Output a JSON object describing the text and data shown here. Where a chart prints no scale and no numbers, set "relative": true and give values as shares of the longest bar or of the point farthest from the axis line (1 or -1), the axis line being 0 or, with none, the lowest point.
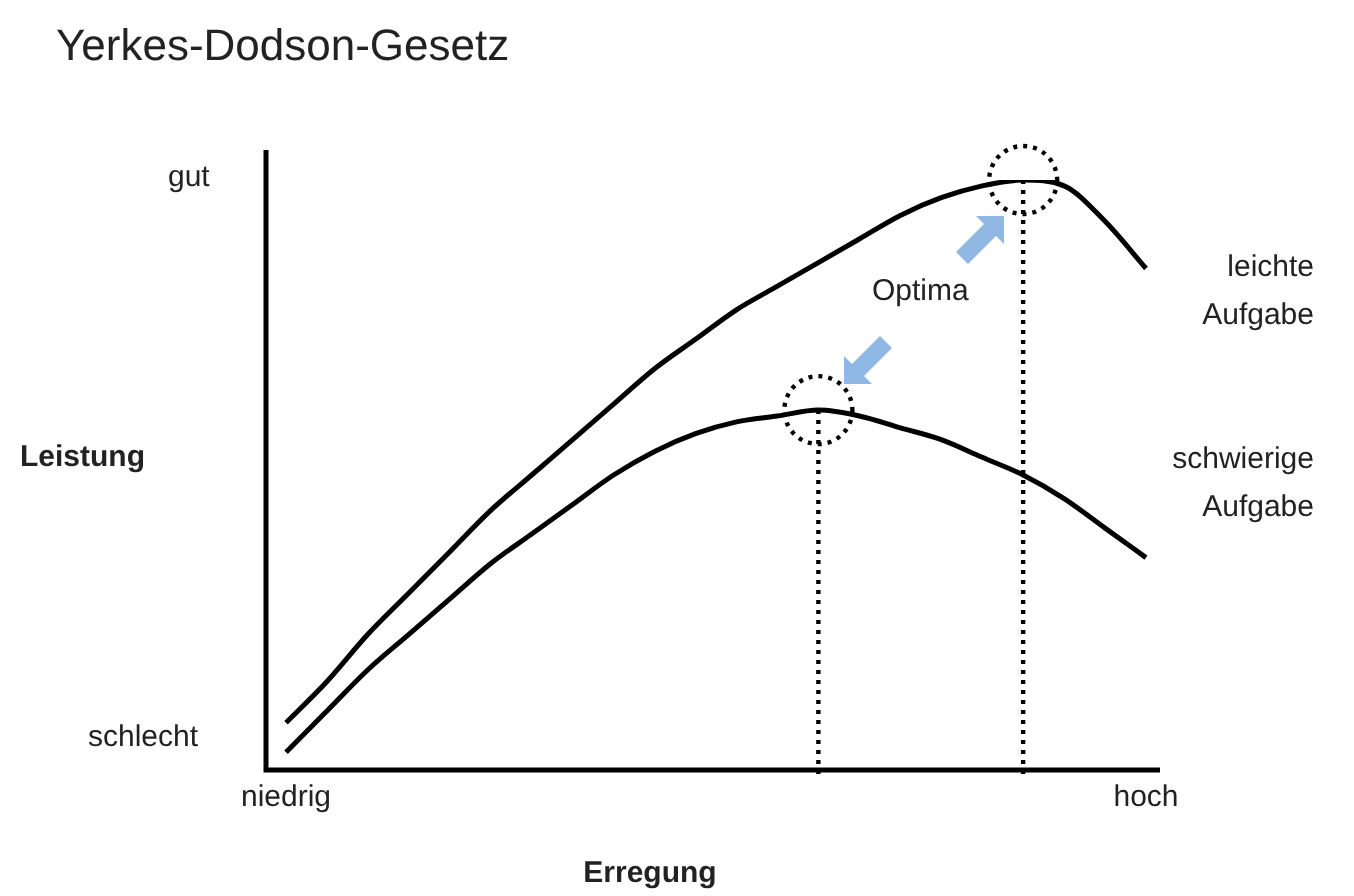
{
  "chart_data": {
    "type": "line",
    "title": "Yerkes-Dodson-Gesetz",
    "xlabel": "Erregung",
    "ylabel": "Leistung",
    "relative": true,
    "legend": false,
    "marker": "none",
    "categories": [
      "niedrig",
      null,
      null,
      null,
      null,
      null,
      null,
      null,
      null,
      null,
      null,
      null,
      null,
      null,
      null,
      null,
      null,
      null,
      null,
      null,
      null,
      "hoch"
    ],
    "series": [
      {
        "name": "leichte Aufgabe",
        "color": "#000000",
        "values": [
          0.08,
          0.15,
          0.23,
          0.3,
          0.37,
          0.44,
          0.5,
          0.56,
          0.62,
          0.68,
          0.73,
          0.78,
          0.82,
          0.86,
          0.9,
          0.94,
          0.97,
          0.99,
          1,
          0.99,
          0.93,
          0.85
        ]
      },
      {
        "name": "schwierige Aufgabe",
        "color": "#000000",
        "values": [
          0.03,
          0.1,
          0.17,
          0.23,
          0.29,
          0.35,
          0.4,
          0.45,
          0.5,
          0.54,
          0.57,
          0.59,
          0.6,
          0.61,
          0.6,
          0.58,
          0.56,
          0.53,
          0.5,
          0.46,
          0.41,
          0.36
        ]
      }
    ],
    "annotations": [
      "gut",
      "schlecht",
      "Optima"
    ]
  }
}
